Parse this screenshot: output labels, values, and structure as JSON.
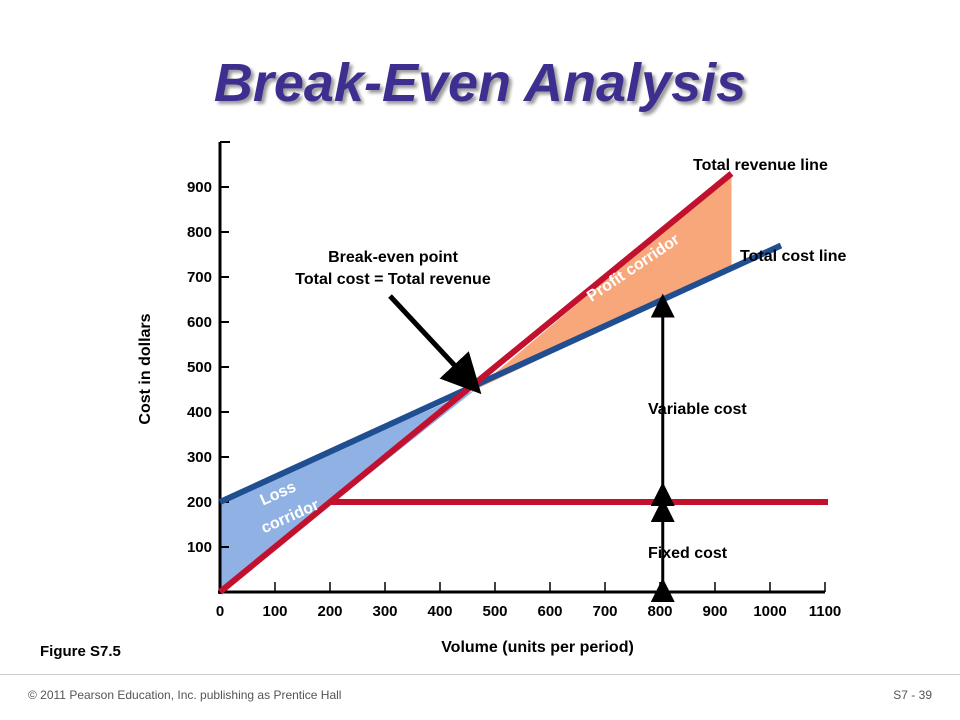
{
  "slide": {
    "title": "Break-Even Analysis",
    "figure_label": "Figure S7.5",
    "footer_left": "© 2011 Pearson Education, Inc. publishing as Prentice Hall",
    "footer_right": "S7 - 39"
  },
  "colors": {
    "revenue_line": "#c2112e",
    "cost_line": "#1f4f91",
    "fixed_line": "#c2112e",
    "profit_fill": "#f7a77a",
    "loss_fill": "#8fb1e3",
    "title": "#3d2f8f"
  },
  "chart_data": {
    "type": "line",
    "xlabel": "Volume (units per period)",
    "ylabel": "Cost in dollars",
    "xlim": [
      0,
      1100
    ],
    "ylim": [
      0,
      1000
    ],
    "x_ticks": [
      0,
      100,
      200,
      300,
      400,
      500,
      600,
      700,
      800,
      900,
      1000,
      1100
    ],
    "y_ticks": [
      100,
      200,
      300,
      400,
      500,
      600,
      700,
      800,
      900
    ],
    "series": [
      {
        "name": "Total revenue line",
        "points": [
          [
            0,
            0
          ],
          [
            930,
            930
          ]
        ]
      },
      {
        "name": "Total cost line",
        "points": [
          [
            0,
            200
          ],
          [
            1020,
            770
          ]
        ]
      },
      {
        "name": "Fixed cost",
        "points": [
          [
            200,
            200
          ],
          [
            1160,
            200
          ]
        ]
      }
    ],
    "break_even": {
      "x": 465,
      "y": 450
    },
    "annotations": {
      "break_even_line1": "Break-even point",
      "break_even_line2": "Total cost = Total revenue",
      "profit_corridor": "Profit corridor",
      "loss_line1": "Loss",
      "loss_line2": "corridor",
      "variable_cost": "Variable cost",
      "fixed_cost": "Fixed cost"
    },
    "arrows": {
      "variable_cost_x": 805,
      "fixed_cost_x": 805
    }
  }
}
